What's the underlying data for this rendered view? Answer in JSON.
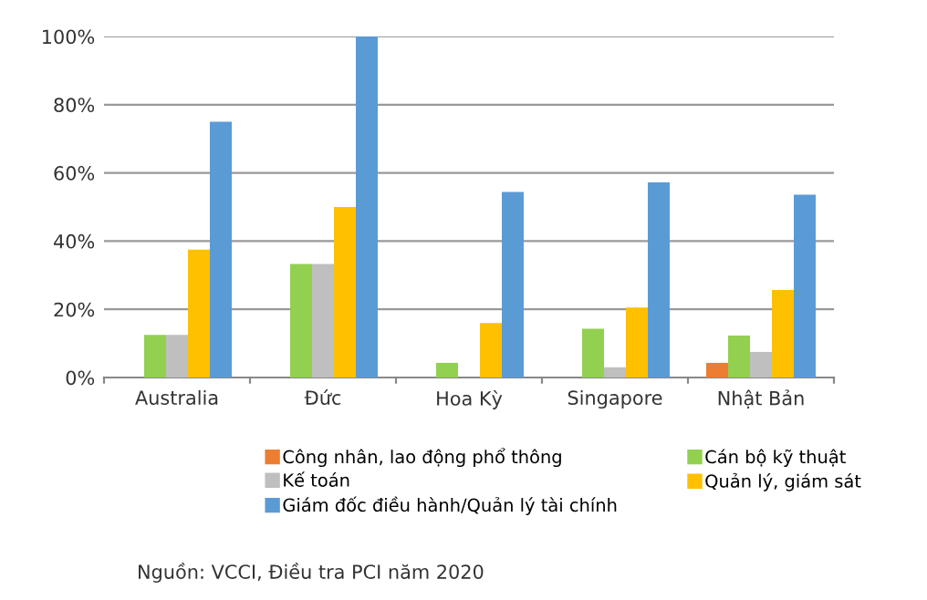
{
  "chart_data": {
    "type": "bar",
    "categories": [
      "Australia",
      "Đức",
      "Hoa Kỳ",
      "Singapore",
      "Nhật Bản"
    ],
    "series": [
      {
        "name": "Công nhân, lao động phổ thông",
        "color": "#ed7d31",
        "values": [
          0,
          0,
          0,
          0,
          4.3
        ]
      },
      {
        "name": "Cán bộ kỹ thuật",
        "color": "#92d050",
        "values": [
          12.5,
          33.3,
          4.3,
          14.3,
          12.3
        ]
      },
      {
        "name": "Kế toán",
        "color": "#bfbfbf",
        "values": [
          12.5,
          33.3,
          0,
          3,
          7.5
        ]
      },
      {
        "name": "Quản lý, giám sát",
        "color": "#ffc000",
        "values": [
          37.5,
          50,
          16,
          20.5,
          25.7
        ]
      },
      {
        "name": "Giám đốc điều hành/Quản lý tài chính",
        "color": "#5b9bd5",
        "values": [
          75,
          100,
          54.4,
          57.2,
          53.6
        ]
      }
    ],
    "ylim": [
      0,
      100
    ],
    "yticks": [
      {
        "value": 0,
        "label": "0%"
      },
      {
        "value": 20,
        "label": "20%"
      },
      {
        "value": 40,
        "label": "40%"
      },
      {
        "value": 60,
        "label": "60%"
      },
      {
        "value": 80,
        "label": "80%"
      },
      {
        "value": 100,
        "label": "100%"
      }
    ],
    "grid": "y",
    "legend": "bottom",
    "annotations": [
      "Nguồn: VCCI, Điều tra PCI năm 2020"
    ]
  }
}
